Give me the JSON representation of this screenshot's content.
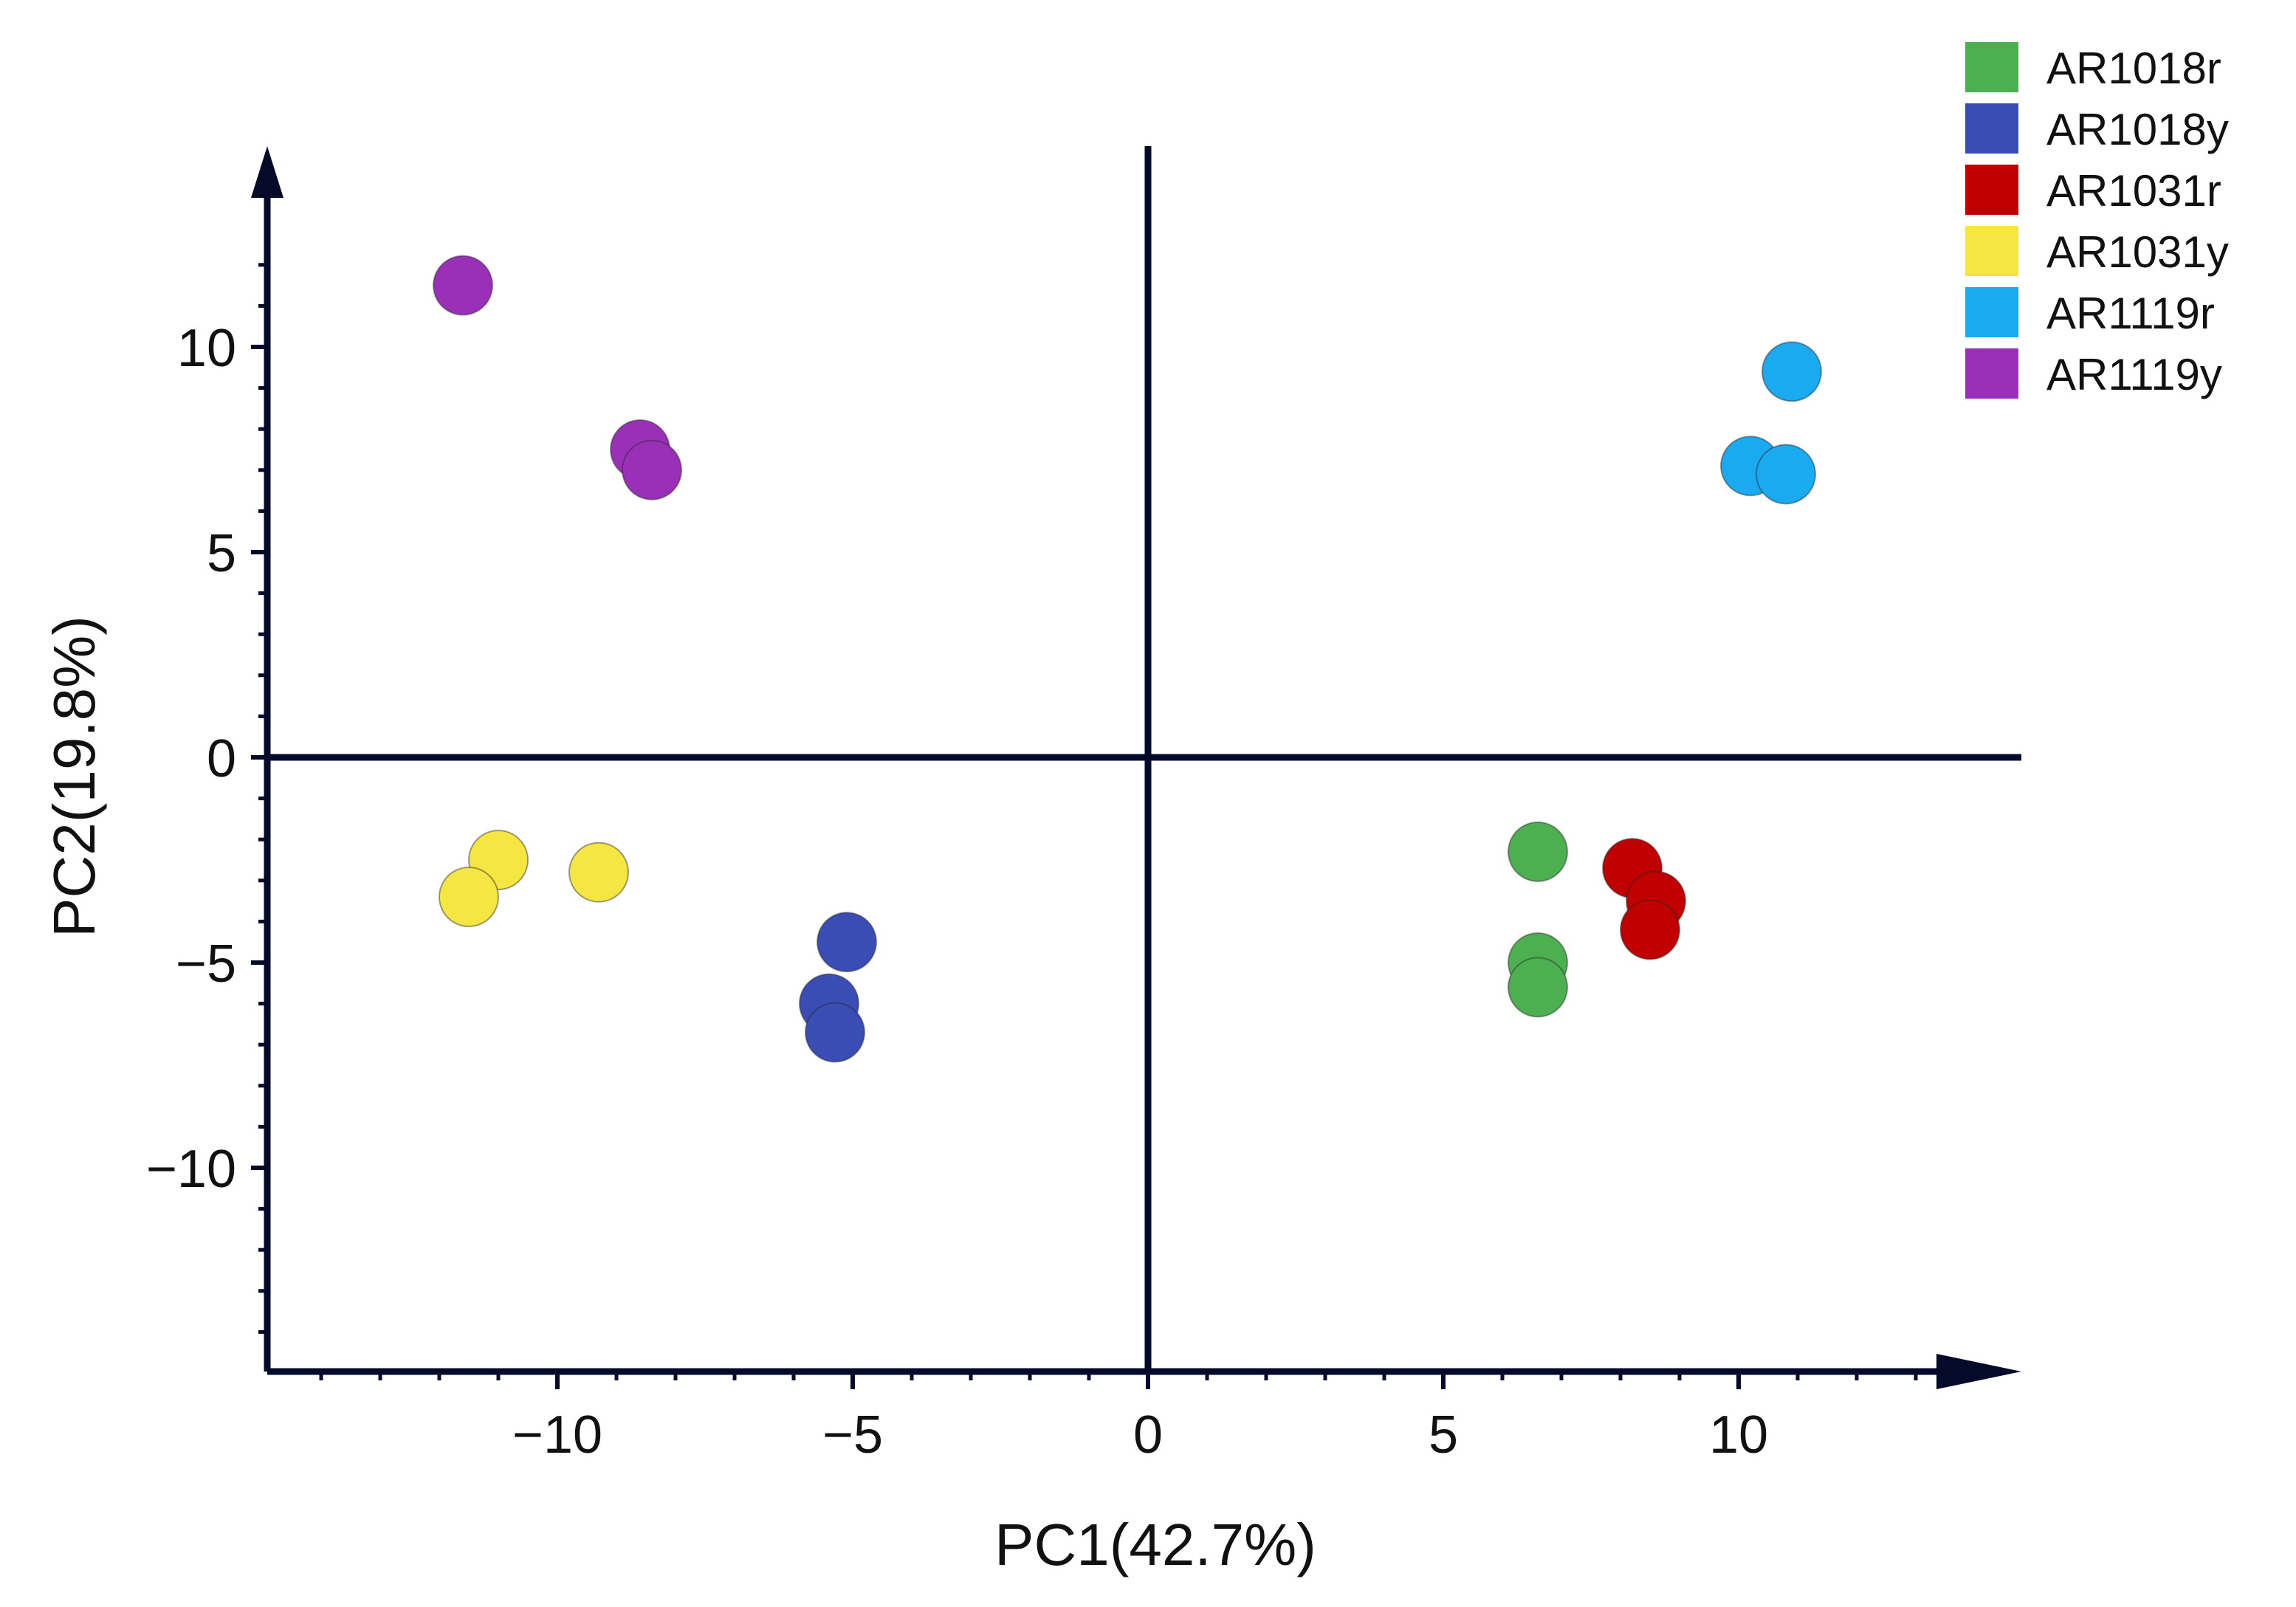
{
  "chart_data": {
    "type": "scatter",
    "title": "",
    "xlabel": "PC1(42.7%)",
    "ylabel": "PC2(19.8%)",
    "xlim": [
      -15,
      15
    ],
    "ylim": [
      -15,
      15
    ],
    "xticks": [
      -10,
      -5,
      0,
      5,
      10
    ],
    "xtick_labels": [
      "−10",
      "−5",
      "0",
      "5",
      "10"
    ],
    "yticks": [
      -10,
      -5,
      0,
      5,
      10
    ],
    "ytick_labels": [
      "−10",
      "−5",
      "0",
      "5",
      "10"
    ],
    "legend_position": "top-right",
    "series": [
      {
        "name": "AR1018r",
        "color": "#4caf50",
        "points": [
          [
            6.6,
            -2.3
          ],
          [
            6.6,
            -5.0
          ],
          [
            6.6,
            -5.6
          ]
        ]
      },
      {
        "name": "AR1018y",
        "color": "#3a4db5",
        "points": [
          [
            -5.1,
            -4.5
          ],
          [
            -5.4,
            -6.0
          ],
          [
            -5.3,
            -6.7
          ]
        ]
      },
      {
        "name": "AR1031r",
        "color": "#c00000",
        "points": [
          [
            8.2,
            -2.7
          ],
          [
            8.6,
            -3.5
          ],
          [
            8.5,
            -4.2
          ]
        ]
      },
      {
        "name": "AR1031y",
        "color": "#f5e642",
        "points": [
          [
            -11.0,
            -2.5
          ],
          [
            -9.3,
            -2.8
          ],
          [
            -11.5,
            -3.4
          ]
        ]
      },
      {
        "name": "AR1119r",
        "color": "#19aaf0",
        "points": [
          [
            10.9,
            9.4
          ],
          [
            10.2,
            7.1
          ],
          [
            10.8,
            6.9
          ]
        ]
      },
      {
        "name": "AR1119y",
        "color": "#9b30b8",
        "points": [
          [
            -11.6,
            11.5
          ],
          [
            -8.6,
            7.5
          ],
          [
            -8.4,
            7.0
          ]
        ]
      }
    ]
  }
}
